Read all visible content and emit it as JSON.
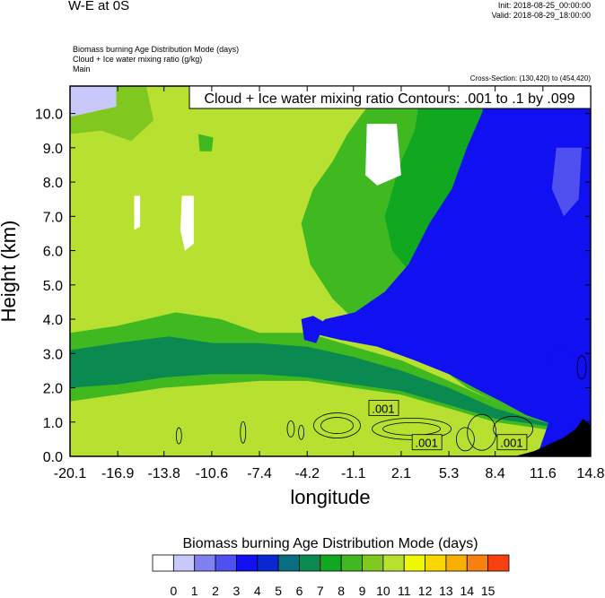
{
  "header": {
    "title": "W-E at 0S",
    "init": "Init: 2018-08-25_00:00:00",
    "valid": "Valid: 2018-08-29_18:00:00",
    "field1": "Biomass burning Age Distribution Mode   (days)",
    "field2": "Cloud + Ice water mixing ratio   (g/kg)",
    "field3": "Main",
    "cross_section": "Cross-Section: (130,420) to (454,420)"
  },
  "colors": {
    "scale": [
      "#ffffff",
      "#c8c8fa",
      "#8080f0",
      "#5050f0",
      "#1010f0",
      "#0a28d2",
      "#0a6e82",
      "#0a8a50",
      "#10a820",
      "#40b820",
      "#80c820",
      "#b8e030",
      "#f0f800",
      "#f8d800",
      "#f8b000",
      "#f88010",
      "#f84010",
      "#f80000"
    ],
    "terrain": "#000000"
  },
  "chart_data": {
    "type": "heatmap",
    "title": "Cloud + Ice water mixing ratio Contours: .001 to .1 by .099",
    "xlabel": "longitude",
    "ylabel": "Height (km)",
    "xlim": [
      -20.1,
      14.8
    ],
    "ylim": [
      0,
      10.8
    ],
    "x_ticks": [
      "-20.1",
      "-16.9",
      "-13.8",
      "-10.6",
      "-7.4",
      "-4.2",
      "-1.1",
      "2.1",
      "5.3",
      "8.4",
      "11.6",
      "14.8"
    ],
    "y_ticks": [
      "0.0",
      "1.0",
      "2.0",
      "3.0",
      "4.0",
      "5.0",
      "6.0",
      "7.0",
      "8.0",
      "9.0",
      "10.0"
    ],
    "colorbar": {
      "label": "Biomass burning Age Distribution Mode  (days)",
      "levels": [
        "0",
        "1",
        "2",
        "3",
        "4",
        "5",
        "6",
        "7",
        "8",
        "9",
        "10",
        "11",
        "12",
        "13",
        "14",
        "15"
      ]
    },
    "contour_labels": [
      ".001",
      ".001",
      ".001"
    ]
  }
}
